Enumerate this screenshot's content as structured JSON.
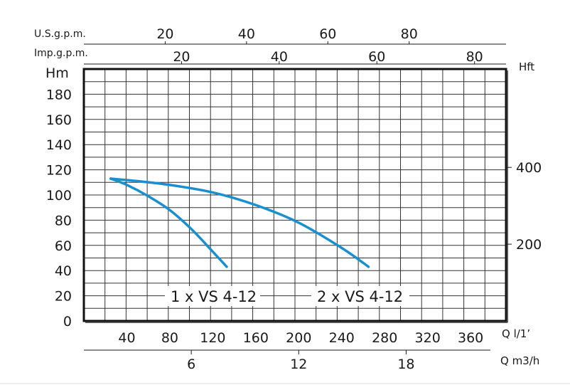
{
  "chart_data": {
    "type": "line",
    "axes": {
      "q_ls": {
        "label": "Q l/1’",
        "ticks": [
          "40",
          "80",
          "120",
          "160",
          "200",
          "240",
          "280",
          "320",
          "360"
        ],
        "range": [
          0,
          393
        ]
      },
      "q_m3h": {
        "label": "Q m3/h",
        "ticks": [
          "6",
          "12",
          "18"
        ]
      },
      "us_gpm": {
        "label": "U.S.g.p.m.",
        "ticks": [
          "20",
          "40",
          "60",
          "80"
        ]
      },
      "imp_gpm": {
        "label": "Imp.g.p.m.",
        "ticks": [
          "20",
          "40",
          "60",
          "80"
        ]
      },
      "hm": {
        "label": "Hm",
        "ticks": [
          "0",
          "20",
          "40",
          "60",
          "80",
          "100",
          "120",
          "140",
          "160",
          "180"
        ],
        "range": [
          0,
          200
        ]
      },
      "hft": {
        "label": "Hft",
        "ticks": [
          "200",
          "400"
        ]
      }
    },
    "grid": true,
    "series": [
      {
        "name": "1 x VS 4-12",
        "color": "#1a8fd0",
        "x": [
          25,
          40,
          60,
          80,
          100,
          120,
          133
        ],
        "y": [
          113,
          108,
          99,
          88,
          73,
          55,
          43
        ]
      },
      {
        "name": "2 x VS 4-12",
        "color": "#1a8fd0",
        "x": [
          25,
          50,
          80,
          120,
          160,
          200,
          240,
          265
        ],
        "y": [
          113,
          111,
          108,
          102,
          92,
          78,
          58,
          43
        ]
      }
    ]
  }
}
